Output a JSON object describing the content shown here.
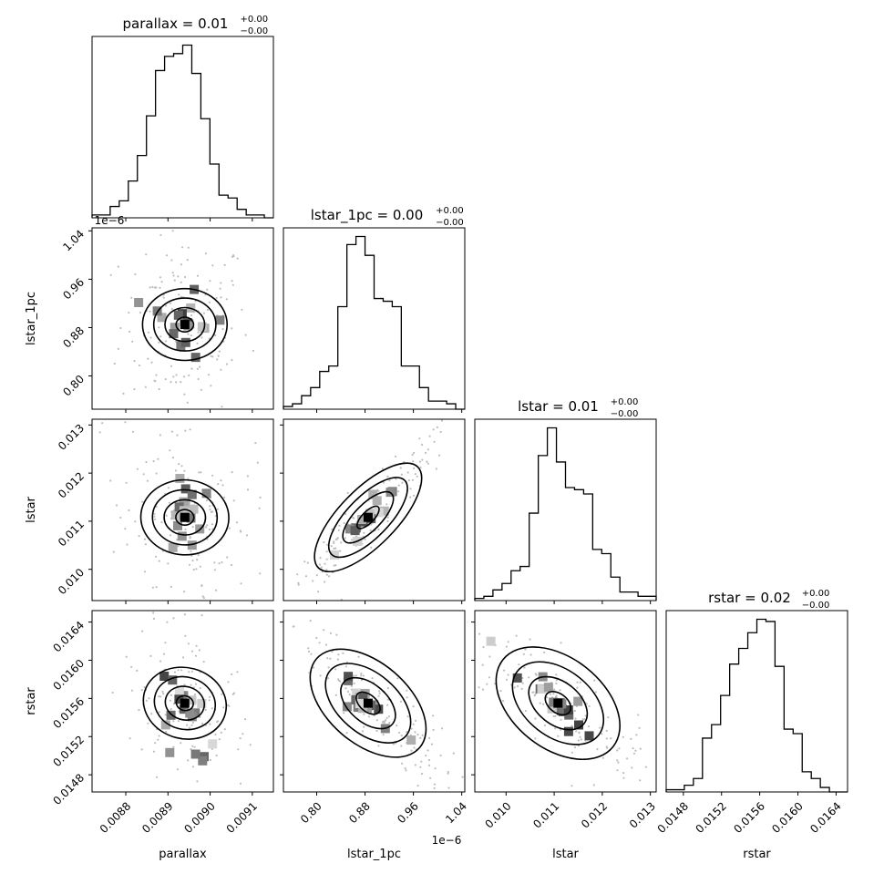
{
  "chart_data": {
    "type": "corner",
    "parameters": [
      {
        "name": "parallax",
        "title": "parallax = 0.01",
        "title_sup": "+0.00",
        "title_sub": "−0.00",
        "range": [
          0.00872,
          0.00915
        ],
        "ticks": [
          0.0088,
          0.0089,
          0.009,
          0.0091
        ],
        "tick_labels": [
          "0.0088",
          "0.0089",
          "0.0090",
          "0.0091"
        ],
        "axis_label": "parallax",
        "offset_text": "",
        "hist": [
          1,
          1,
          4,
          6,
          13,
          22,
          36,
          52,
          57,
          58,
          61,
          51,
          35,
          19,
          8,
          7,
          3,
          1,
          1,
          0
        ],
        "ellipse": {
          "cx": 0.00894,
          "rx": 4.5e-05
        }
      },
      {
        "name": "lstar_1pc",
        "title": "lstar_1pc = 0.00",
        "title_sup": "+0.00",
        "title_sub": "−0.00",
        "range": [
          0.745,
          1.045
        ],
        "ticks": [
          0.8,
          0.88,
          0.96,
          1.04
        ],
        "tick_labels": [
          "0.80",
          "0.88",
          "0.96",
          "1.04"
        ],
        "axis_label": "lstar_1pc",
        "offset_text": "1e−6",
        "hist": [
          1,
          2,
          5,
          8,
          14,
          16,
          38,
          61,
          64,
          57,
          41,
          40,
          38,
          16,
          16,
          8,
          3,
          3,
          2,
          0
        ],
        "ellipse": {
          "cx": 0.885,
          "rx": 0.045
        }
      },
      {
        "name": "lstar",
        "title": "lstar = 0.01",
        "title_sup": "+0.00",
        "title_sub": "−0.00",
        "range": [
          0.00935,
          0.01312
        ],
        "ticks": [
          0.01,
          0.011,
          0.012,
          0.013
        ],
        "tick_labels": [
          "0.010",
          "0.011",
          "0.012",
          "0.013"
        ],
        "axis_label": "lstar",
        "offset_text": "",
        "hist": [
          1,
          2,
          5,
          8,
          14,
          16,
          41,
          68,
          81,
          65,
          53,
          52,
          50,
          24,
          22,
          11,
          4,
          4,
          2,
          2
        ],
        "ellipse": {
          "cx": 0.01108,
          "rx": 0.0006
        }
      },
      {
        "name": "rstar",
        "title": "rstar = 0.02",
        "title_sup": "+0.00",
        "title_sub": "−0.00",
        "range": [
          0.01462,
          0.01652
        ],
        "ticks": [
          0.0148,
          0.0152,
          0.0156,
          0.016,
          0.0164
        ],
        "tick_labels": [
          "0.0148",
          "0.0152",
          "0.0156",
          "0.0160",
          "0.0164"
        ],
        "axis_label": "rstar",
        "offset_text": "",
        "hist": [
          1,
          1,
          3,
          6,
          24,
          30,
          43,
          57,
          64,
          71,
          77,
          76,
          56,
          28,
          26,
          9,
          6,
          2,
          0,
          0
        ],
        "ellipse": {
          "cx": 0.01555,
          "rx": 0.00028
        }
      }
    ],
    "correlations": {
      "1-0": 0.0,
      "2-0": -0.05,
      "2-1": 0.96,
      "3-0": -0.4,
      "3-1": -0.88,
      "3-2": -0.85
    }
  }
}
